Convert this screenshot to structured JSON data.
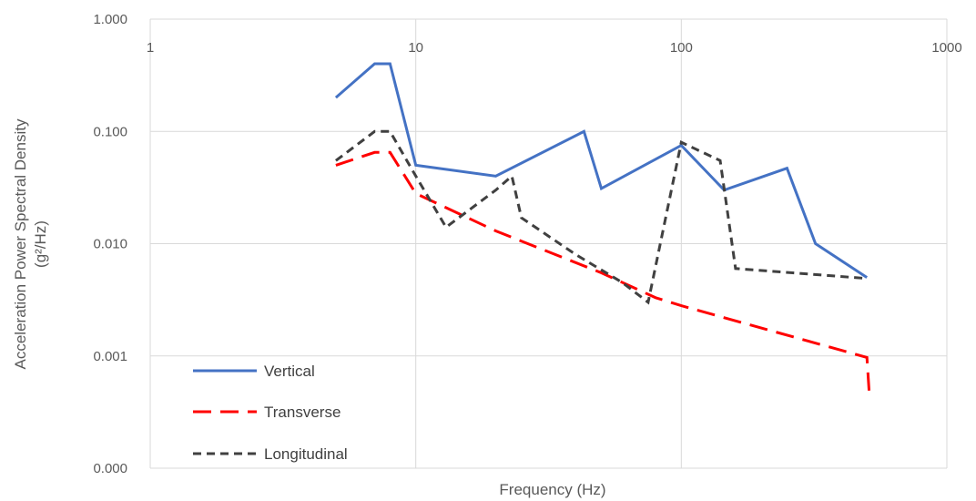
{
  "chart_data": {
    "type": "line",
    "title": "",
    "xlabel": "Frequency (Hz)",
    "ylabel_line1": "Acceleration Power Spectral Density",
    "ylabel_line2": "(g²/Hz)",
    "x_scale": "log",
    "y_scale": "log",
    "xlim": [
      1,
      1000
    ],
    "ylim": [
      0.0001,
      1
    ],
    "grid": true,
    "legend_position": "bottom-left",
    "x_ticks": [
      {
        "value": 1,
        "label": "1"
      },
      {
        "value": 10,
        "label": "10"
      },
      {
        "value": 100,
        "label": "100"
      },
      {
        "value": 1000,
        "label": "1000"
      }
    ],
    "y_ticks": [
      {
        "value": 1,
        "label": "1.000"
      },
      {
        "value": 0.1,
        "label": "0.100"
      },
      {
        "value": 0.01,
        "label": "0.010"
      },
      {
        "value": 0.001,
        "label": "0.001"
      },
      {
        "value": 0.0001,
        "label": "0.000"
      }
    ],
    "series": [
      {
        "name": "Vertical",
        "color": "#4472c4",
        "dash": "solid",
        "points": [
          [
            5,
            0.2
          ],
          [
            7,
            0.4
          ],
          [
            8,
            0.4
          ],
          [
            10,
            0.05
          ],
          [
            20,
            0.04
          ],
          [
            43,
            0.1
          ],
          [
            50,
            0.031
          ],
          [
            100,
            0.075
          ],
          [
            145,
            0.03
          ],
          [
            250,
            0.047
          ],
          [
            320,
            0.01
          ],
          [
            500,
            0.005
          ]
        ]
      },
      {
        "name": "Transverse",
        "color": "#ff0000",
        "dash": "long-dash",
        "points": [
          [
            5,
            0.05
          ],
          [
            7,
            0.065
          ],
          [
            8,
            0.065
          ],
          [
            10,
            0.028
          ],
          [
            20,
            0.013
          ],
          [
            50,
            0.0055
          ],
          [
            80,
            0.0033
          ],
          [
            100,
            0.0028
          ],
          [
            500,
            0.00097
          ],
          [
            510,
            0.00047
          ]
        ]
      },
      {
        "name": "Longitudinal",
        "color": "#404040",
        "dash": "short-dash",
        "points": [
          [
            5,
            0.055
          ],
          [
            7,
            0.1
          ],
          [
            8,
            0.1
          ],
          [
            10,
            0.04
          ],
          [
            13,
            0.014
          ],
          [
            20,
            0.03
          ],
          [
            23,
            0.04
          ],
          [
            25,
            0.017
          ],
          [
            40,
            0.008
          ],
          [
            60,
            0.0045
          ],
          [
            75,
            0.003
          ],
          [
            100,
            0.08
          ],
          [
            140,
            0.055
          ],
          [
            160,
            0.006
          ],
          [
            500,
            0.0049
          ]
        ]
      }
    ]
  }
}
